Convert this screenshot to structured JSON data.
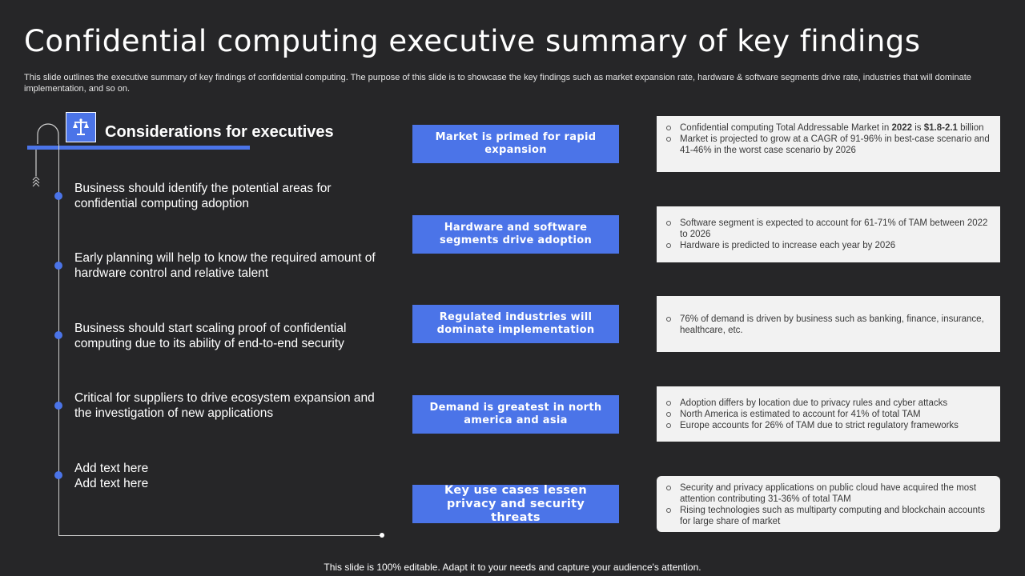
{
  "slide": {
    "title": "Confidential computing executive summary of key findings",
    "subtitle": "This slide outlines the executive summary of key findings of confidential computing. The purpose of this slide is to showcase the key findings such as market expansion rate, hardware & software segments drive rate, industries that will dominate implementation, and so on.",
    "footer": "This slide is 100% editable. Adapt it to your needs and capture your audience's attention.",
    "accent_color": "#4b74e8",
    "background_color": "#262628"
  },
  "considerations": {
    "heading": "Considerations for executives",
    "icon": "scales-icon",
    "items": [
      {
        "text": "Business should identify the potential areas for confidential computing adoption"
      },
      {
        "text": "Early planning will help to know the required amount of hardware control and relative talent"
      },
      {
        "text": "Business should start scaling proof of confidential computing due to its ability of end-to-end security"
      },
      {
        "text": "Critical for suppliers to drive ecosystem expansion and the investigation of new applications"
      },
      {
        "text": "Add text here\nAdd text here"
      }
    ]
  },
  "findings": [
    {
      "label": "Market is primed for rapid expansion",
      "details": [
        "Confidential computing Total Addressable Market in 2022 is $1.8-2.1 billion",
        "Market is projected to grow at a CAGR of 91-96% in best-case scenario and 41-46% in the worst case scenario by 2026"
      ]
    },
    {
      "label": "Hardware and software segments drive adoption",
      "details": [
        "Software segment is expected to account for 61-71% of TAM  between 2022 to 2026",
        "Hardware is predicted to increase each year by 2026"
      ]
    },
    {
      "label": "Regulated industries will dominate implementation",
      "details": [
        "76% of demand is driven by business such as banking, finance, insurance, healthcare, etc."
      ]
    },
    {
      "label": "Demand is greatest in north america and asia",
      "details": [
        "Adoption differs by location due to privacy rules and cyber attacks",
        "North America is estimated to account for 41% of total TAM",
        "Europe accounts for 26% of TAM  due to strict regulatory frameworks"
      ]
    },
    {
      "label": "Key use cases lessen privacy and security threats",
      "details": [
        "Security and privacy applications on public cloud have acquired the most attention contributing 31-36% of total TAM",
        "Rising technologies such as multiparty computing and blockchain accounts for large share of market"
      ]
    }
  ]
}
